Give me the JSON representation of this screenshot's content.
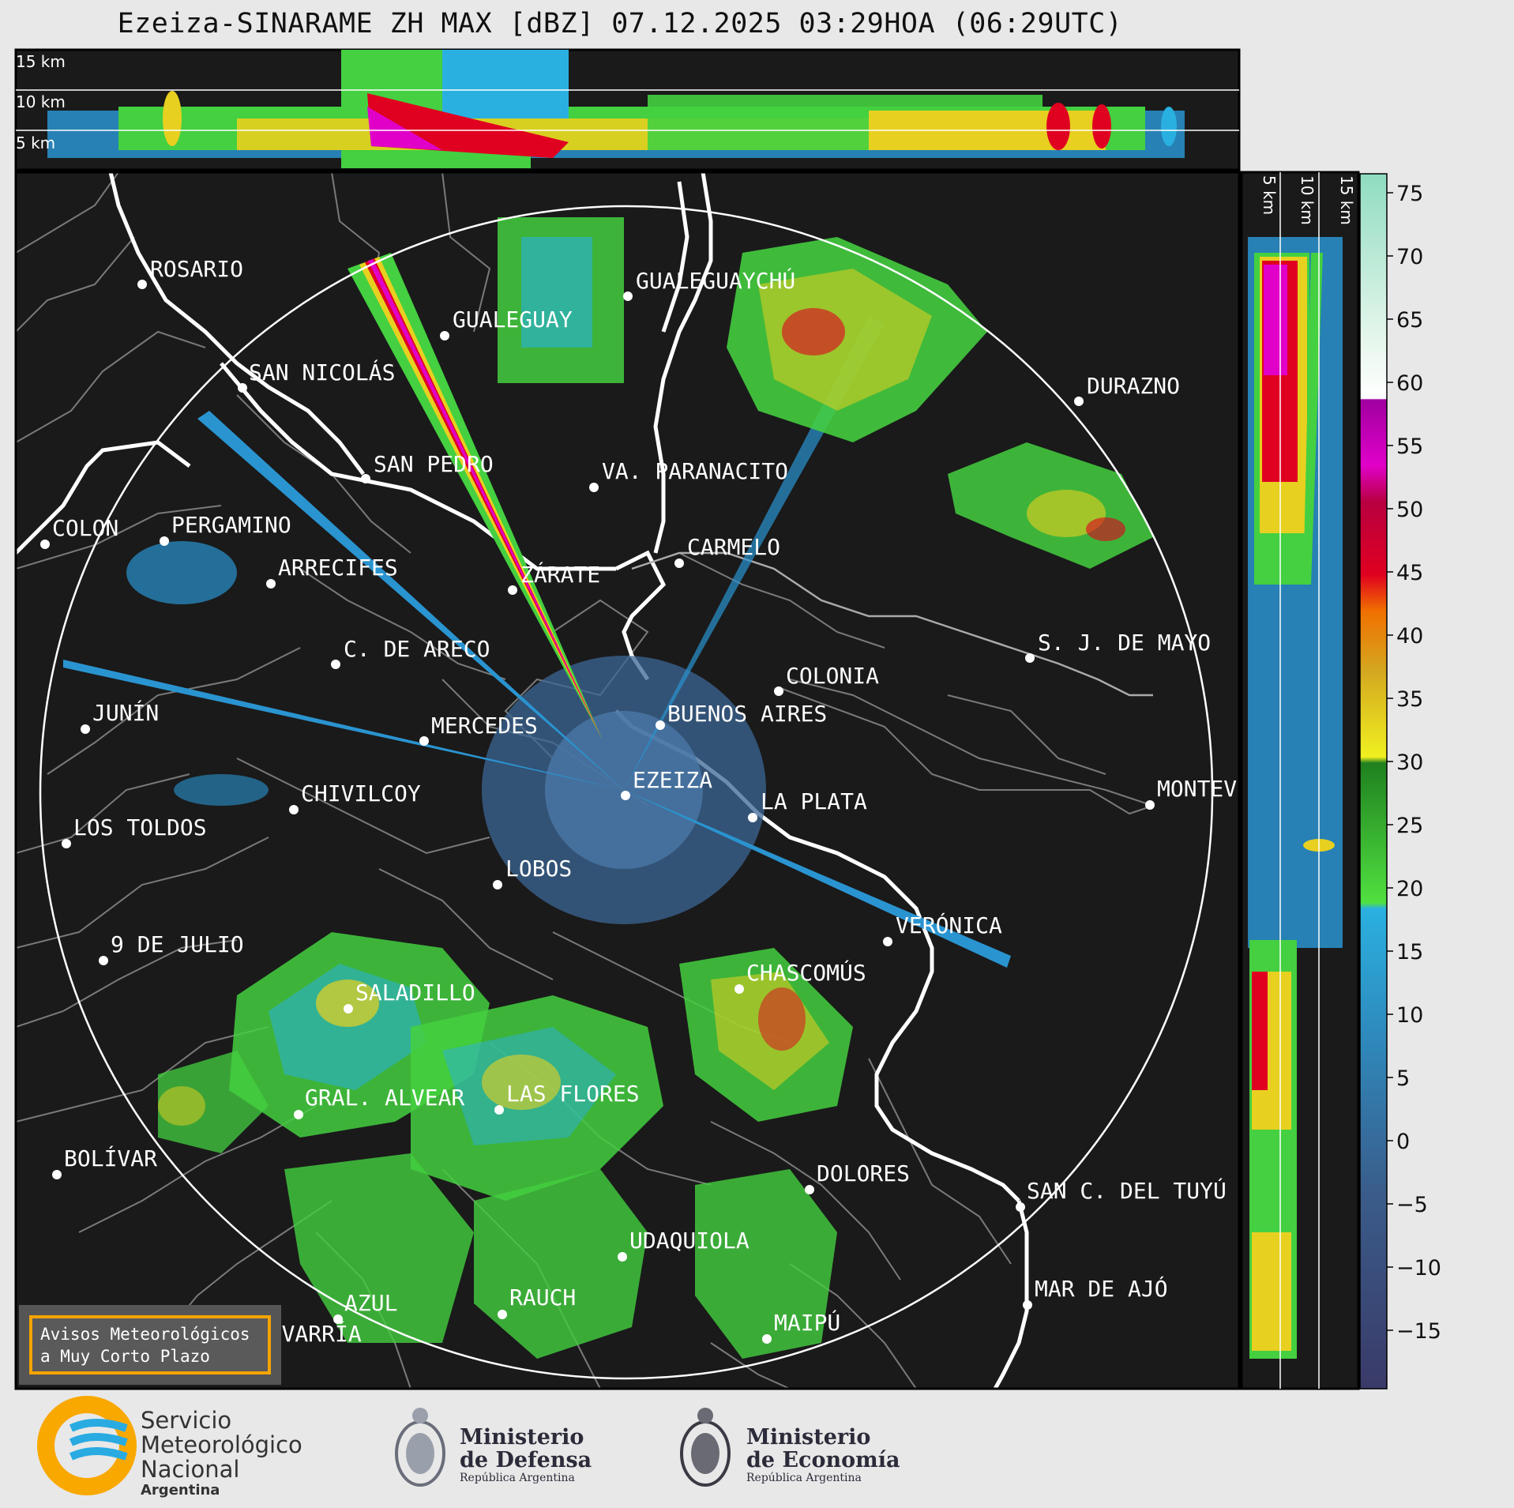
{
  "title": "Ezeiza-SINARAME ZH MAX [dBZ] 07.12.2025 03:29HOA (06:29UTC)",
  "top_panel": {
    "labels": [
      "15 km",
      "10 km",
      "5 km"
    ]
  },
  "side_panel": {
    "labels": [
      "5 km",
      "10 km",
      "15 km"
    ]
  },
  "colorbar": {
    "ticks": [
      "75",
      "70",
      "65",
      "60",
      "55",
      "50",
      "45",
      "40",
      "35",
      "30",
      "25",
      "20",
      "15",
      "10",
      "5",
      "0",
      "−5",
      "−10",
      "−15"
    ]
  },
  "cities": [
    {
      "name": "ROSARIO"
    },
    {
      "name": "GUALEGUAYCHÚ"
    },
    {
      "name": "GUALEGUAY"
    },
    {
      "name": "SAN NICOLÁS"
    },
    {
      "name": "DURAZNO"
    },
    {
      "name": "SAN PEDRO"
    },
    {
      "name": "VA. PARANACITO"
    },
    {
      "name": "COLON"
    },
    {
      "name": "PERGAMINO"
    },
    {
      "name": "CARMELO"
    },
    {
      "name": "ARRECIFES"
    },
    {
      "name": "ZÁRATE"
    },
    {
      "name": "S. J. DE MAYO"
    },
    {
      "name": "C. DE ARECO"
    },
    {
      "name": "COLONIA"
    },
    {
      "name": "JUNÍN"
    },
    {
      "name": "BUENOS AIRES"
    },
    {
      "name": "MERCEDES"
    },
    {
      "name": "MONTEV"
    },
    {
      "name": "EZEIZA"
    },
    {
      "name": "CHIVILCOY"
    },
    {
      "name": "LA PLATA"
    },
    {
      "name": "LOS TOLDOS"
    },
    {
      "name": "LOBOS"
    },
    {
      "name": "VERÓNICA"
    },
    {
      "name": "9 DE JULIO"
    },
    {
      "name": "CHASCOMÚS"
    },
    {
      "name": "SALADILLO"
    },
    {
      "name": "GRAL. ALVEAR"
    },
    {
      "name": "LAS FLORES"
    },
    {
      "name": "BOLÍVAR"
    },
    {
      "name": "DOLORES"
    },
    {
      "name": "SAN C. DEL TUYÚ"
    },
    {
      "name": "UDAQUIOLA"
    },
    {
      "name": "MAR DE AJÓ"
    },
    {
      "name": "AZUL"
    },
    {
      "name": "RAUCH"
    },
    {
      "name": "OLAVARRÍA"
    },
    {
      "name": "MAIPÚ"
    }
  ],
  "aviso": {
    "line1": "Avisos Meteorológicos",
    "line2": "a Muy Corto Plazo"
  },
  "logos": {
    "smn": {
      "line1": "Servicio",
      "line2": "Meteorológico",
      "line3": "Nacional",
      "line4": "Argentina"
    },
    "defensa": {
      "line1": "Ministerio",
      "line2": "de Defensa",
      "line3": "República Argentina"
    },
    "economia": {
      "line1": "Ministerio",
      "line2": "de Economía",
      "line3": "República Argentina"
    }
  },
  "colors": {
    "map_bg": "#1a1a1a",
    "border_gray": "#7a7a7a",
    "coast_white": "#ffffff",
    "aviso_border": "#f5a400",
    "smn_blue": "#29abe2",
    "smn_orange": "#f9a800"
  }
}
